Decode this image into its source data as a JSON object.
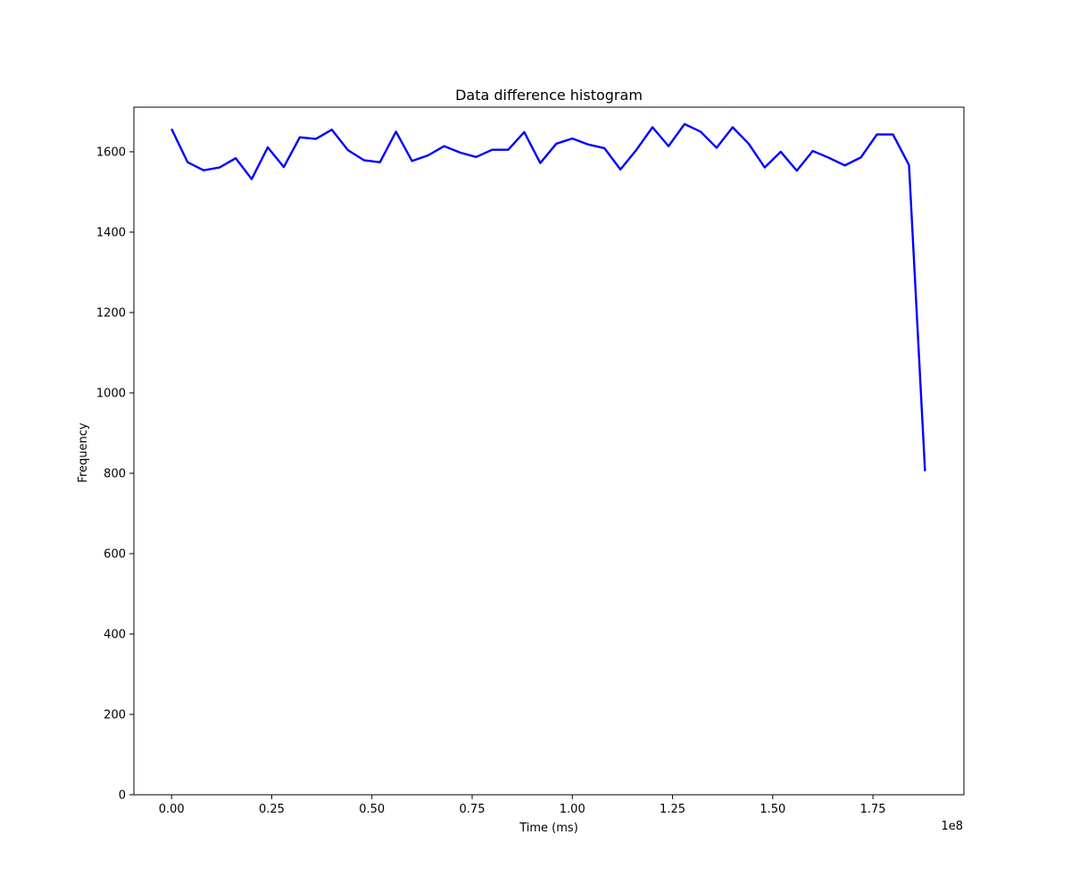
{
  "chart_data": {
    "type": "line",
    "title": "Data difference histogram",
    "xlabel": "Time (ms)",
    "ylabel": "Frequency",
    "x_offset_text": "1e8",
    "xlim": [
      -0.094,
      1.977
    ],
    "ylim": [
      0,
      1711
    ],
    "x_ticks": [
      0.0,
      0.25,
      0.5,
      0.75,
      1.0,
      1.25,
      1.5,
      1.75
    ],
    "x_tick_labels": [
      "0.00",
      "0.25",
      "0.50",
      "0.75",
      "1.00",
      "1.25",
      "1.50",
      "1.75"
    ],
    "y_ticks": [
      0,
      200,
      400,
      600,
      800,
      1000,
      1200,
      1400,
      1600
    ],
    "y_tick_labels": [
      "0",
      "200",
      "400",
      "600",
      "800",
      "1000",
      "1200",
      "1400",
      "1600"
    ],
    "grid": false,
    "color": "#0000ff",
    "series": [
      {
        "x": [
          0.0,
          0.04,
          0.08,
          0.12,
          0.16,
          0.2,
          0.24,
          0.28,
          0.32,
          0.36,
          0.4,
          0.44,
          0.48,
          0.52,
          0.56,
          0.6,
          0.64,
          0.68,
          0.72,
          0.76,
          0.8,
          0.84,
          0.88,
          0.92,
          0.96,
          1.0,
          1.04,
          1.08,
          1.12,
          1.16,
          1.2,
          1.24,
          1.28,
          1.32,
          1.36,
          1.4,
          1.44,
          1.48,
          1.52,
          1.56,
          1.6,
          1.64,
          1.68,
          1.72,
          1.76,
          1.8,
          1.84,
          1.88
        ],
        "values": [
          1657,
          1574,
          1554,
          1561,
          1584,
          1532,
          1611,
          1562,
          1636,
          1632,
          1655,
          1604,
          1579,
          1574,
          1650,
          1577,
          1591,
          1614,
          1598,
          1587,
          1605,
          1605,
          1649,
          1572,
          1620,
          1633,
          1618,
          1609,
          1556,
          1605,
          1661,
          1614,
          1669,
          1650,
          1610,
          1661,
          1620,
          1561,
          1600,
          1553,
          1602,
          1585,
          1566,
          1586,
          1643,
          1643,
          1567,
          805
        ]
      }
    ]
  }
}
